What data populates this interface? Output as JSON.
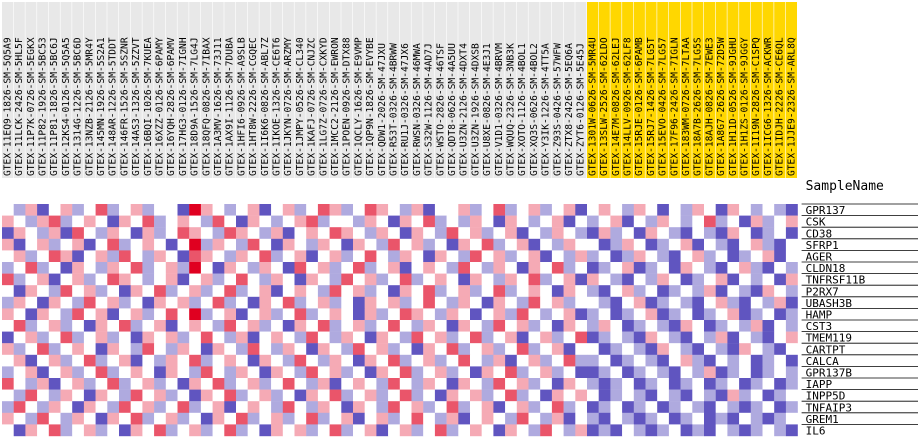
{
  "chart_data": {
    "type": "heatmap",
    "sample_label": "SampleName",
    "samples": [
      "GTEX-11EQ9-1826-SM-5Q5A9",
      "GTEX-11LCK-2426-SM-5HL5F",
      "GTEX-11P7K-0726-SM-5EGKX",
      "GTEX-11P82-1926-SM-5BC53",
      "GTEX-11P81-1826-SM-5BC6J",
      "GTEX-12KS4-0126-SM-5Q5A5",
      "GTEX-1314G-1226-SM-5BC6D",
      "GTEX-13NZB-2126-SM-5MR4Y",
      "GTEX-145MN-1926-SM-5S2A1",
      "GTEX-148AR-1226-SM-5TDDT",
      "GTEX-146FR-1526-SM-5SZNR",
      "GTEX-14AS3-1326-SM-5ZZVT",
      "GTEX-16BQI-1026-SM-7KUEA",
      "GTEX-16XZZ-0126-SM-6PAMY",
      "GTEX-16YQH-2826-SM-6PAMV",
      "GTEX-17HG3-0126-SM-7IGNH",
      "GTEX-18D9A-1526-SM-7LG4J",
      "GTEX-18QFQ-0826-SM-7IBAX",
      "GTEX-1A3MV-1626-SM-73J11",
      "GTEX-1AX9I-1126-SM-7DUBA",
      "GTEX-1HFI6-0926-SM-A9SLB",
      "GTEX-1HT8W-2226-SM-CGQEC",
      "GTEX-1I6K6-0826-SM-ABL7Z",
      "GTEX-1IKOE-1326-SM-CE6T6",
      "GTEX-1JKYN-0726-SM-ARZMY",
      "GTEX-1JMPY-0526-SM-CL340",
      "GTEX-1KAFJ-0726-SM-CNJZC",
      "GTEX-1LG7Z-0726-SM-CXKYD",
      "GTEX-1MCC2-2126-SM-EWRON",
      "GTEX-1POEN-0926-SM-DTX88",
      "GTEX-1QCLY-1626-SM-E9VMP",
      "GTEX-1QP9N-1826-SM-EVYBE",
      "GTEX-QDW1-2026-SM-47JXU",
      "GTEX-R53T-0326-SM-4BRWW",
      "GTEX-RU1J-0326-SM-47JX6",
      "GTEX-RWSN-0326-SM-46MWA",
      "GTEX-S32W-1126-SM-4AD7J",
      "GTEX-WSTO-2826-SM-46TSF",
      "GTEX-QDT8-0626-SM-4A5UU",
      "GTEX-U3ZN-2126-SM-4DXT4",
      "GTEX-U3ZN-1926-SM-4DXSB",
      "GTEX-U8XE-0826-SM-4E3J1",
      "GTEX-V1D1-0326-SM-4BRVM",
      "GTEX-WQUQ-2326-SM-3NB3K",
      "GTEX-XOTO-1126-SM-4BOL1",
      "GTEX-XQ3S-0626-SM-4BOL2",
      "GTEX-Y3IK-1226-SM-4TT5A",
      "GTEX-Z93S-0426-SM-57WFW",
      "GTEX-ZTX8-2426-SM-5EQ6A",
      "GTEX-ZYT6-0126-SM-5E45J",
      "GTEX-1301W-0626-SM-5MR4U",
      "GTEX-13SLW-2526-SM-62LDO",
      "GTEX-14E7M-0826-SM-62LEJ",
      "GTEX-14LLV-0926-SM-62LF8",
      "GTEX-15RJE-0126-SM-6PAMB",
      "GTEX-15RJ7-1426-SM-7LG5T",
      "GTEX-15EVO-0426-SM-7LG57",
      "GTEX-17F96-2426-SM-7IGLN",
      "GTEX-183WM-0726-SM-7LTAA",
      "GTEX-18A7B-2626-SM-7LG5S",
      "GTEX-18AJH-0826-SM-7EWE3",
      "GTEX-1A8G7-2626-SM-72D5W",
      "GTEX-1H11D-0526-SM-9JGHU",
      "GTEX-1H1ZS-0126-SM-9JGGY",
      "GTEX-1I19N-2826-SM-C1SPQ",
      "GTEX-1ICG6-1326-SM-ACKWR",
      "GTEX-1IDJH-2226-SM-CE6QL",
      "GTEX-1JJE9-2326-SM-ARL8Q"
    ],
    "highlighted_sample_start_index": 50,
    "genes": [
      "GPR137",
      "CSK",
      "CD38",
      "SFRP1",
      "AGER",
      "CLDN18",
      "TNFRSF11B",
      "P2RX7",
      "UBASH3B",
      "HAMP",
      "CST3",
      "TMEM119",
      "CARTPT",
      "CALCA",
      "GPR137B",
      "IAPP",
      "INPP5D",
      "TNFAIP3",
      "GREM1",
      "IL6"
    ],
    "value_range": [
      -3,
      3
    ],
    "colors": {
      "low": "#1000a0",
      "mid": "#ffffff",
      "high": "#e00020",
      "highlight_label_bg": "#ffd700",
      "label_bg": "#e8e8e8"
    },
    "values": [
      [
        0,
        -1,
        1,
        -2,
        0,
        1,
        -1,
        0,
        2,
        -1,
        0,
        1,
        -1,
        0,
        0,
        -2,
        3,
        1,
        0,
        -1,
        0,
        1,
        -2,
        0,
        1,
        -1,
        0,
        2,
        1,
        -1,
        0,
        2,
        1,
        0,
        -1,
        1,
        -2,
        0,
        0,
        1,
        -1,
        0,
        2,
        -1,
        0,
        1,
        -1,
        0,
        1,
        -2,
        0,
        1,
        0,
        -1,
        1,
        0,
        -2,
        0,
        -1,
        1,
        0,
        -2,
        1,
        0,
        -1,
        0,
        -1,
        -2
      ],
      [
        1,
        0,
        -1,
        1,
        2,
        -1,
        0,
        1,
        0,
        -2,
        1,
        0,
        2,
        -1,
        0,
        1,
        0,
        -1,
        2,
        0,
        -2,
        1,
        0,
        -1,
        0,
        1,
        2,
        -1,
        0,
        0,
        -1,
        1,
        0,
        -2,
        1,
        0,
        2,
        -1,
        0,
        -1,
        1,
        0,
        -2,
        1,
        0,
        -1,
        0,
        1,
        -2,
        0,
        -1,
        0,
        1,
        -2,
        0,
        -1,
        1,
        0,
        -1,
        0,
        2,
        -1,
        0,
        -2,
        1,
        -1,
        0,
        1
      ],
      [
        -2,
        1,
        0,
        -1,
        1,
        -2,
        2,
        0,
        -1,
        1,
        0,
        -2,
        1,
        -1,
        0,
        2,
        1,
        0,
        -1,
        2,
        1,
        0,
        -1,
        1,
        -2,
        0,
        1,
        0,
        2,
        1,
        0,
        -1,
        1,
        0,
        -2,
        1,
        0,
        -1,
        2,
        0,
        1,
        -1,
        0,
        1,
        -2,
        0,
        -1,
        1,
        0,
        -1,
        -2,
        1,
        -1,
        0,
        -2,
        1,
        0,
        -1,
        -2,
        0,
        -1,
        -2,
        1,
        0,
        -2,
        -1,
        0,
        -2
      ],
      [
        1,
        -2,
        0,
        1,
        -1,
        0,
        1,
        -2,
        0,
        2,
        -1,
        0,
        1,
        0,
        -2,
        0,
        3,
        -1,
        1,
        0,
        -1,
        2,
        0,
        -2,
        1,
        0,
        -1,
        1,
        0,
        -2,
        1,
        0,
        -1,
        2,
        0,
        1,
        -1,
        0,
        -2,
        1,
        0,
        2,
        -1,
        0,
        1,
        -2,
        0,
        -1,
        1,
        0,
        0,
        -2,
        -1,
        1,
        0,
        -2,
        -1,
        0,
        1,
        -2,
        0,
        -1,
        -2,
        0,
        1,
        -1,
        -2,
        0
      ],
      [
        0,
        1,
        -1,
        0,
        2,
        1,
        -2,
        0,
        1,
        -1,
        2,
        0,
        -1,
        1,
        0,
        -2,
        2,
        1,
        0,
        -1,
        1,
        0,
        2,
        -1,
        0,
        1,
        -2,
        0,
        1,
        -1,
        0,
        2,
        0,
        -1,
        1,
        0,
        -2,
        1,
        0,
        -1,
        2,
        0,
        1,
        -1,
        0,
        1,
        -2,
        0,
        -1,
        1,
        -1,
        0,
        -2,
        -1,
        1,
        0,
        -1,
        -2,
        0,
        1,
        -1,
        0,
        -2,
        -1,
        0,
        1,
        -2,
        0
      ],
      [
        -1,
        0,
        2,
        -1,
        0,
        -2,
        1,
        0,
        -1,
        1,
        0,
        2,
        -1,
        0,
        1,
        -1,
        3,
        0,
        -2,
        1,
        0,
        -1,
        1,
        0,
        -2,
        2,
        0,
        1,
        -1,
        0,
        2,
        -1,
        0,
        1,
        -2,
        0,
        1,
        0,
        -1,
        2,
        0,
        -1,
        1,
        0,
        -2,
        1,
        0,
        2,
        -1,
        0,
        -2,
        -1,
        0,
        1,
        -2,
        -1,
        0,
        -2,
        1,
        0,
        -1,
        -2,
        0,
        1,
        -1,
        -2,
        0,
        -1
      ],
      [
        2,
        -1,
        0,
        1,
        -2,
        0,
        1,
        -1,
        0,
        2,
        1,
        0,
        -1,
        0,
        1,
        -2,
        0,
        1,
        -1,
        0,
        2,
        0,
        -1,
        1,
        0,
        -2,
        1,
        0,
        -1,
        2,
        0,
        1,
        -1,
        0,
        2,
        -1,
        0,
        1,
        0,
        -2,
        1,
        0,
        -1,
        1,
        0,
        2,
        -1,
        0,
        1,
        -2,
        1,
        0,
        -1,
        -2,
        0,
        -1,
        1,
        0,
        -2,
        -1,
        0,
        1,
        -2,
        0,
        -1,
        0,
        -2,
        1
      ],
      [
        0,
        -2,
        1,
        0,
        -1,
        2,
        0,
        1,
        -1,
        0,
        -2,
        1,
        0,
        2,
        -1,
        0,
        1,
        -1,
        0,
        2,
        -1,
        0,
        1,
        -2,
        0,
        1,
        0,
        -1,
        2,
        0,
        1,
        -1,
        0,
        -2,
        1,
        0,
        2,
        -1,
        0,
        1,
        -1,
        0,
        2,
        -1,
        0,
        1,
        0,
        -2,
        1,
        0,
        -1,
        -2,
        0,
        1,
        -1,
        0,
        -2,
        -1,
        0,
        -1,
        1,
        -2,
        0,
        -1,
        -2,
        1,
        0,
        -1
      ],
      [
        -1,
        1,
        0,
        -2,
        1,
        0,
        -1,
        2,
        0,
        1,
        -1,
        0,
        -2,
        1,
        0,
        1,
        -1,
        0,
        2,
        -1,
        0,
        -2,
        1,
        0,
        2,
        -1,
        0,
        1,
        -1,
        0,
        -2,
        1,
        0,
        1,
        -1,
        0,
        2,
        0,
        -1,
        1,
        0,
        -2,
        1,
        0,
        -1,
        2,
        0,
        1,
        -1,
        0,
        0,
        -1,
        -2,
        0,
        1,
        -2,
        -1,
        0,
        -1,
        -2,
        0,
        1,
        -1,
        -2,
        0,
        -1,
        1,
        -2
      ],
      [
        1,
        0,
        -2,
        1,
        0,
        -1,
        2,
        0,
        1,
        -2,
        0,
        1,
        -1,
        0,
        2,
        0,
        3,
        -1,
        0,
        1,
        -2,
        0,
        1,
        -1,
        0,
        2,
        -1,
        0,
        1,
        0,
        -2,
        1,
        -1,
        0,
        2,
        1,
        0,
        -1,
        1,
        0,
        -2,
        0,
        1,
        -1,
        2,
        0,
        -1,
        0,
        1,
        -2,
        -1,
        0,
        -2,
        -1,
        0,
        1,
        -2,
        -1,
        0,
        -2,
        -1,
        0,
        1,
        -2,
        -1,
        0,
        -2,
        -1
      ],
      [
        0,
        2,
        -1,
        0,
        1,
        -1,
        0,
        -2,
        1,
        0,
        2,
        -1,
        0,
        1,
        -2,
        0,
        1,
        0,
        -1,
        2,
        0,
        1,
        -1,
        0,
        -2,
        1,
        0,
        2,
        -1,
        0,
        1,
        -1,
        0,
        2,
        0,
        -1,
        1,
        0,
        -2,
        1,
        0,
        -1,
        2,
        0,
        1,
        -1,
        0,
        -2,
        1,
        0,
        -1,
        1,
        0,
        -2,
        -1,
        0,
        -1,
        -2,
        1,
        0,
        -2,
        -1,
        0,
        -1,
        1,
        -2,
        0,
        -1
      ],
      [
        -2,
        0,
        1,
        -1,
        0,
        2,
        -1,
        0,
        1,
        -1,
        0,
        -2,
        1,
        0,
        1,
        -1,
        0,
        2,
        0,
        -1,
        1,
        -2,
        0,
        1,
        0,
        -1,
        2,
        0,
        -1,
        1,
        0,
        -2,
        1,
        0,
        -1,
        2,
        0,
        1,
        -1,
        0,
        2,
        -1,
        0,
        1,
        -2,
        0,
        1,
        -1,
        0,
        2,
        -2,
        -1,
        0,
        -1,
        -2,
        1,
        0,
        -1,
        -2,
        0,
        -1,
        1,
        -2,
        0,
        -1,
        -2,
        0,
        1
      ],
      [
        1,
        -1,
        0,
        2,
        -1,
        0,
        1,
        0,
        -2,
        1,
        0,
        -1,
        2,
        0,
        -1,
        1,
        0,
        -2,
        1,
        0,
        -1,
        2,
        0,
        -1,
        1,
        0,
        -2,
        1,
        0,
        -1,
        2,
        0,
        1,
        -1,
        0,
        -2,
        1,
        0,
        2,
        -1,
        0,
        1,
        -1,
        0,
        2,
        -1,
        0,
        1,
        -2,
        0,
        0,
        -2,
        -1,
        0,
        -1,
        -2,
        1,
        0,
        -1,
        -2,
        0,
        -1,
        -2,
        1,
        0,
        -1,
        -2,
        0
      ],
      [
        0,
        1,
        -2,
        0,
        1,
        -1,
        0,
        2,
        -1,
        0,
        1,
        -2,
        0,
        -1,
        1,
        0,
        2,
        -1,
        0,
        1,
        0,
        -2,
        1,
        0,
        -1,
        2,
        0,
        -1,
        1,
        0,
        -2,
        1,
        0,
        2,
        -1,
        0,
        1,
        -1,
        0,
        2,
        0,
        -1,
        1,
        -2,
        0,
        1,
        -1,
        0,
        2,
        -1,
        -1,
        0,
        -2,
        -1,
        0,
        -1,
        -2,
        0,
        1,
        -1,
        -2,
        0,
        -1,
        0,
        -2,
        -1,
        0,
        -2
      ],
      [
        -1,
        0,
        1,
        -2,
        0,
        1,
        -1,
        0,
        2,
        -1,
        0,
        1,
        0,
        -2,
        1,
        0,
        -1,
        2,
        0,
        -1,
        1,
        0,
        -2,
        1,
        0,
        -1,
        2,
        0,
        1,
        -1,
        0,
        -2,
        1,
        0,
        2,
        -1,
        0,
        1,
        -1,
        0,
        -2,
        1,
        0,
        2,
        -1,
        0,
        1,
        -1,
        0,
        -2,
        -2,
        -1,
        0,
        -2,
        -1,
        0,
        -1,
        -2,
        0,
        -1,
        1,
        -2,
        -1,
        0,
        -2,
        -1,
        0,
        -1
      ],
      [
        2,
        0,
        -1,
        1,
        -2,
        0,
        1,
        -1,
        0,
        2,
        -1,
        0,
        1,
        -1,
        0,
        -2,
        1,
        0,
        2,
        -1,
        0,
        1,
        -1,
        0,
        2,
        0,
        -1,
        1,
        -2,
        0,
        1,
        0,
        -1,
        2,
        0,
        -1,
        1,
        0,
        -2,
        1,
        0,
        -1,
        2,
        0,
        1,
        -1,
        0,
        -2,
        1,
        0,
        -1,
        -2,
        -1,
        0,
        -2,
        -1,
        0,
        -2,
        -1,
        0,
        -2,
        -1,
        0,
        -2,
        -1,
        0,
        -2,
        -1
      ],
      [
        0,
        -1,
        2,
        0,
        -1,
        1,
        0,
        -2,
        1,
        0,
        -1,
        2,
        0,
        1,
        -1,
        0,
        -2,
        1,
        0,
        2,
        -1,
        0,
        1,
        -1,
        0,
        -2,
        1,
        0,
        2,
        -1,
        0,
        1,
        -1,
        0,
        2,
        -1,
        0,
        -2,
        1,
        0,
        1,
        -1,
        0,
        2,
        -1,
        0,
        -2,
        1,
        0,
        1,
        0,
        -2,
        -1,
        0,
        -1,
        -2,
        0,
        -1,
        -2,
        0,
        -1,
        -2,
        1,
        -1,
        0,
        -2,
        -1,
        0
      ],
      [
        -1,
        2,
        0,
        -1,
        1,
        0,
        -2,
        1,
        0,
        -1,
        2,
        0,
        1,
        -1,
        0,
        2,
        -1,
        0,
        1,
        -2,
        0,
        1,
        0,
        -1,
        2,
        0,
        -1,
        1,
        0,
        -2,
        1,
        0,
        -1,
        2,
        0,
        1,
        -1,
        0,
        2,
        -1,
        0,
        1,
        -2,
        0,
        1,
        -1,
        0,
        2,
        -1,
        0,
        -2,
        -1,
        0,
        -2,
        -1,
        0,
        -2,
        -1,
        0,
        -1,
        -2,
        0,
        -1,
        -2,
        -1,
        0,
        -2,
        -1
      ],
      [
        1,
        0,
        -1,
        2,
        0,
        -1,
        1,
        0,
        -2,
        1,
        0,
        2,
        -1,
        0,
        1,
        -1,
        0,
        -2,
        1,
        0,
        2,
        -1,
        0,
        1,
        -1,
        0,
        2,
        -1,
        0,
        1,
        -2,
        0,
        1,
        -1,
        0,
        2,
        0,
        -1,
        1,
        -2,
        0,
        1,
        0,
        -1,
        2,
        0,
        -1,
        1,
        -2,
        0,
        -1,
        -2,
        0,
        -1,
        -2,
        -1,
        0,
        -2,
        -1,
        0,
        -2,
        -1,
        -2,
        0,
        -1,
        -2,
        -1,
        0
      ],
      [
        0,
        -2,
        1,
        0,
        2,
        -1,
        0,
        1,
        -1,
        0,
        -2,
        1,
        0,
        2,
        -1,
        0,
        1,
        -1,
        0,
        2,
        -1,
        0,
        -2,
        1,
        0,
        1,
        -1,
        0,
        2,
        -1,
        0,
        1,
        -2,
        0,
        1,
        -1,
        0,
        2,
        -1,
        0,
        1,
        0,
        -2,
        1,
        0,
        -1,
        2,
        0,
        -1,
        1,
        -2,
        -1,
        -2,
        0,
        -1,
        -2,
        -1,
        0,
        -2,
        -1,
        -2,
        0,
        -1,
        -2,
        -1,
        0,
        -1,
        -2
      ]
    ]
  }
}
